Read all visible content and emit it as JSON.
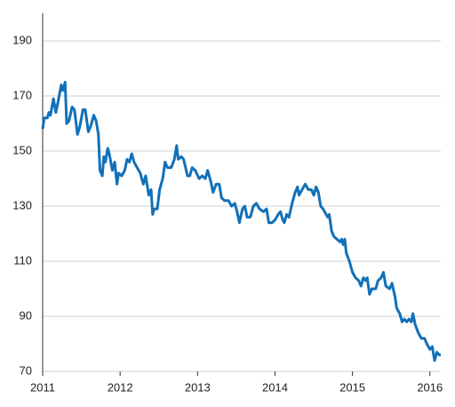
{
  "chart_data": {
    "type": "line",
    "x": [
      2011.0,
      2011.02,
      2011.06,
      2011.08,
      2011.1,
      2011.14,
      2011.17,
      2011.2,
      2011.24,
      2011.26,
      2011.29,
      2011.31,
      2011.34,
      2011.38,
      2011.41,
      2011.45,
      2011.48,
      2011.52,
      2011.55,
      2011.59,
      2011.62,
      2011.66,
      2011.69,
      2011.72,
      2011.74,
      2011.77,
      2011.79,
      2011.81,
      2011.84,
      2011.86,
      2011.9,
      2011.93,
      2011.96,
      2011.98,
      2012.02,
      2012.06,
      2012.09,
      2012.12,
      2012.15,
      2012.18,
      2012.22,
      2012.26,
      2012.3,
      2012.33,
      2012.37,
      2012.4,
      2012.42,
      2012.44,
      2012.48,
      2012.51,
      2012.55,
      2012.58,
      2012.61,
      2012.66,
      2012.7,
      2012.73,
      2012.75,
      2012.79,
      2012.82,
      2012.87,
      2012.9,
      2012.93,
      2012.97,
      2013.02,
      2013.06,
      2013.1,
      2013.13,
      2013.17,
      2013.2,
      2013.24,
      2013.28,
      2013.31,
      2013.35,
      2013.4,
      2013.44,
      2013.48,
      2013.51,
      2013.54,
      2013.58,
      2013.61,
      2013.64,
      2013.68,
      2013.72,
      2013.76,
      2013.8,
      2013.85,
      2013.89,
      2013.92,
      2013.96,
      2014.0,
      2014.04,
      2014.07,
      2014.1,
      2014.12,
      2014.15,
      2014.18,
      2014.22,
      2014.26,
      2014.29,
      2014.31,
      2014.35,
      2014.39,
      2014.43,
      2014.47,
      2014.5,
      2014.53,
      2014.56,
      2014.59,
      2014.62,
      2014.66,
      2014.68,
      2014.7,
      2014.73,
      2014.76,
      2014.8,
      2014.84,
      2014.86,
      2014.88,
      2014.9,
      2014.92,
      2014.96,
      2015.0,
      2015.04,
      2015.08,
      2015.11,
      2015.14,
      2015.17,
      2015.19,
      2015.22,
      2015.25,
      2015.3,
      2015.33,
      2015.37,
      2015.4,
      2015.43,
      2015.48,
      2015.51,
      2015.55,
      2015.57,
      2015.61,
      2015.64,
      2015.67,
      2015.7,
      2015.73,
      2015.76,
      2015.78,
      2015.81,
      2015.85,
      2015.89,
      2015.93,
      2015.96,
      2016.0,
      2016.03,
      2016.06,
      2016.09,
      2016.12,
      2016.14
    ],
    "series": [
      {
        "color": "#1170b8",
        "values": [
          158,
          162,
          162,
          164,
          163,
          169,
          164,
          168,
          174,
          172,
          175,
          160,
          161,
          166,
          165,
          156,
          159,
          165,
          165,
          157,
          159,
          163,
          161,
          156,
          143,
          141,
          148,
          146,
          151,
          149,
          143,
          146,
          138,
          142,
          141,
          143,
          147,
          146,
          149,
          146,
          144,
          142,
          138,
          141,
          134,
          136,
          127,
          129,
          129,
          136,
          140,
          146,
          144,
          144,
          147,
          152,
          147,
          148,
          147,
          141,
          141,
          144,
          143,
          140,
          141,
          140,
          143,
          139,
          135,
          138,
          138,
          133,
          132,
          132,
          130,
          131,
          128,
          124,
          129,
          130,
          126,
          126,
          130,
          131,
          129,
          128,
          129,
          124,
          124,
          125,
          127,
          128,
          125,
          124,
          127,
          126,
          131,
          135,
          137,
          134,
          136,
          138,
          136,
          136,
          134,
          137,
          135,
          130,
          129,
          127,
          126,
          127,
          121,
          119,
          118,
          117,
          118,
          116,
          118,
          113,
          110,
          106,
          104,
          103,
          101,
          104,
          103,
          104,
          98,
          100,
          100,
          103,
          104,
          106,
          101,
          100,
          102,
          97,
          93,
          91,
          88,
          89,
          88,
          89,
          88,
          91,
          87,
          84,
          82,
          82,
          80,
          78,
          79,
          74,
          77,
          76,
          76
        ]
      }
    ],
    "xlim": [
      2011,
      2016.14
    ],
    "xticks": [
      2011,
      2012,
      2013,
      2014,
      2015,
      2016
    ],
    "ylim": [
      70,
      200
    ],
    "yticks": [
      70,
      90,
      110,
      130,
      150,
      170,
      190
    ],
    "grid": true
  }
}
